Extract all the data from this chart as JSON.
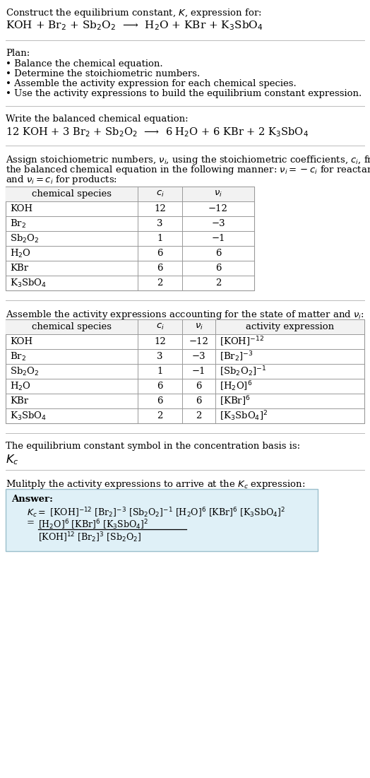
{
  "title_line1": "Construct the equilibrium constant, $K$, expression for:",
  "title_line2": "KOH + Br$_2$ + Sb$_2$O$_2$  ⟶  H$_2$O + KBr + K$_3$SbO$_4$",
  "plan_header": "Plan:",
  "plan_items": [
    "• Balance the chemical equation.",
    "• Determine the stoichiometric numbers.",
    "• Assemble the activity expression for each chemical species.",
    "• Use the activity expressions to build the equilibrium constant expression."
  ],
  "balanced_header": "Write the balanced chemical equation:",
  "balanced_eq": "12 KOH + 3 Br$_2$ + Sb$_2$O$_2$  ⟶  6 H$_2$O + 6 KBr + 2 K$_3$SbO$_4$",
  "stoich_header_lines": [
    "Assign stoichiometric numbers, $\\nu_i$, using the stoichiometric coefficients, $c_i$, from",
    "the balanced chemical equation in the following manner: $\\nu_i = -c_i$ for reactants",
    "and $\\nu_i = c_i$ for products:"
  ],
  "table1_cols": [
    "chemical species",
    "$c_i$",
    "$\\nu_i$"
  ],
  "table1_data": [
    [
      "KOH",
      "12",
      "−12"
    ],
    [
      "Br$_2$",
      "3",
      "−3"
    ],
    [
      "Sb$_2$O$_2$",
      "1",
      "−1"
    ],
    [
      "H$_2$O",
      "6",
      "6"
    ],
    [
      "KBr",
      "6",
      "6"
    ],
    [
      "K$_3$SbO$_4$",
      "2",
      "2"
    ]
  ],
  "activity_header": "Assemble the activity expressions accounting for the state of matter and $\\nu_i$:",
  "table2_cols": [
    "chemical species",
    "$c_i$",
    "$\\nu_i$",
    "activity expression"
  ],
  "table2_data": [
    [
      "KOH",
      "12",
      "−12",
      "[KOH]$^{-12}$"
    ],
    [
      "Br$_2$",
      "3",
      "−3",
      "[Br$_2$]$^{-3}$"
    ],
    [
      "Sb$_2$O$_2$",
      "1",
      "−1",
      "[Sb$_2$O$_2$]$^{-1}$"
    ],
    [
      "H$_2$O",
      "6",
      "6",
      "[H$_2$O]$^6$"
    ],
    [
      "KBr",
      "6",
      "6",
      "[KBr]$^6$"
    ],
    [
      "K$_3$SbO$_4$",
      "2",
      "2",
      "[K$_3$SbO$_4$]$^2$"
    ]
  ],
  "kc_header": "The equilibrium constant symbol in the concentration basis is:",
  "kc_symbol": "$K_c$",
  "multiply_header": "Mulitply the activity expressions to arrive at the $K_c$ expression:",
  "answer_label": "Answer:",
  "answer_line1": "$K_c = $ [KOH]$^{-12}$ [Br$_2$]$^{-3}$ [Sb$_2$O$_2$]$^{-1}$ [H$_2$O]$^6$ [KBr]$^6$ [K$_3$SbO$_4$]$^2$",
  "answer_num": "[H$_2$O]$^6$ [KBr]$^6$ [K$_3$SbO$_4$]$^2$",
  "answer_den": "[KOH]$^{12}$ [Br$_2$]$^3$ [Sb$_2$O$_2$]",
  "bg_color": "#ffffff",
  "table_header_bg": "#f2f2f2",
  "answer_box_bg": "#dff0f7",
  "answer_box_border": "#9bbfcc",
  "text_color": "#000000",
  "sep_line_color": "#bbbbbb",
  "table_line_color": "#999999",
  "font_size": 9.5
}
